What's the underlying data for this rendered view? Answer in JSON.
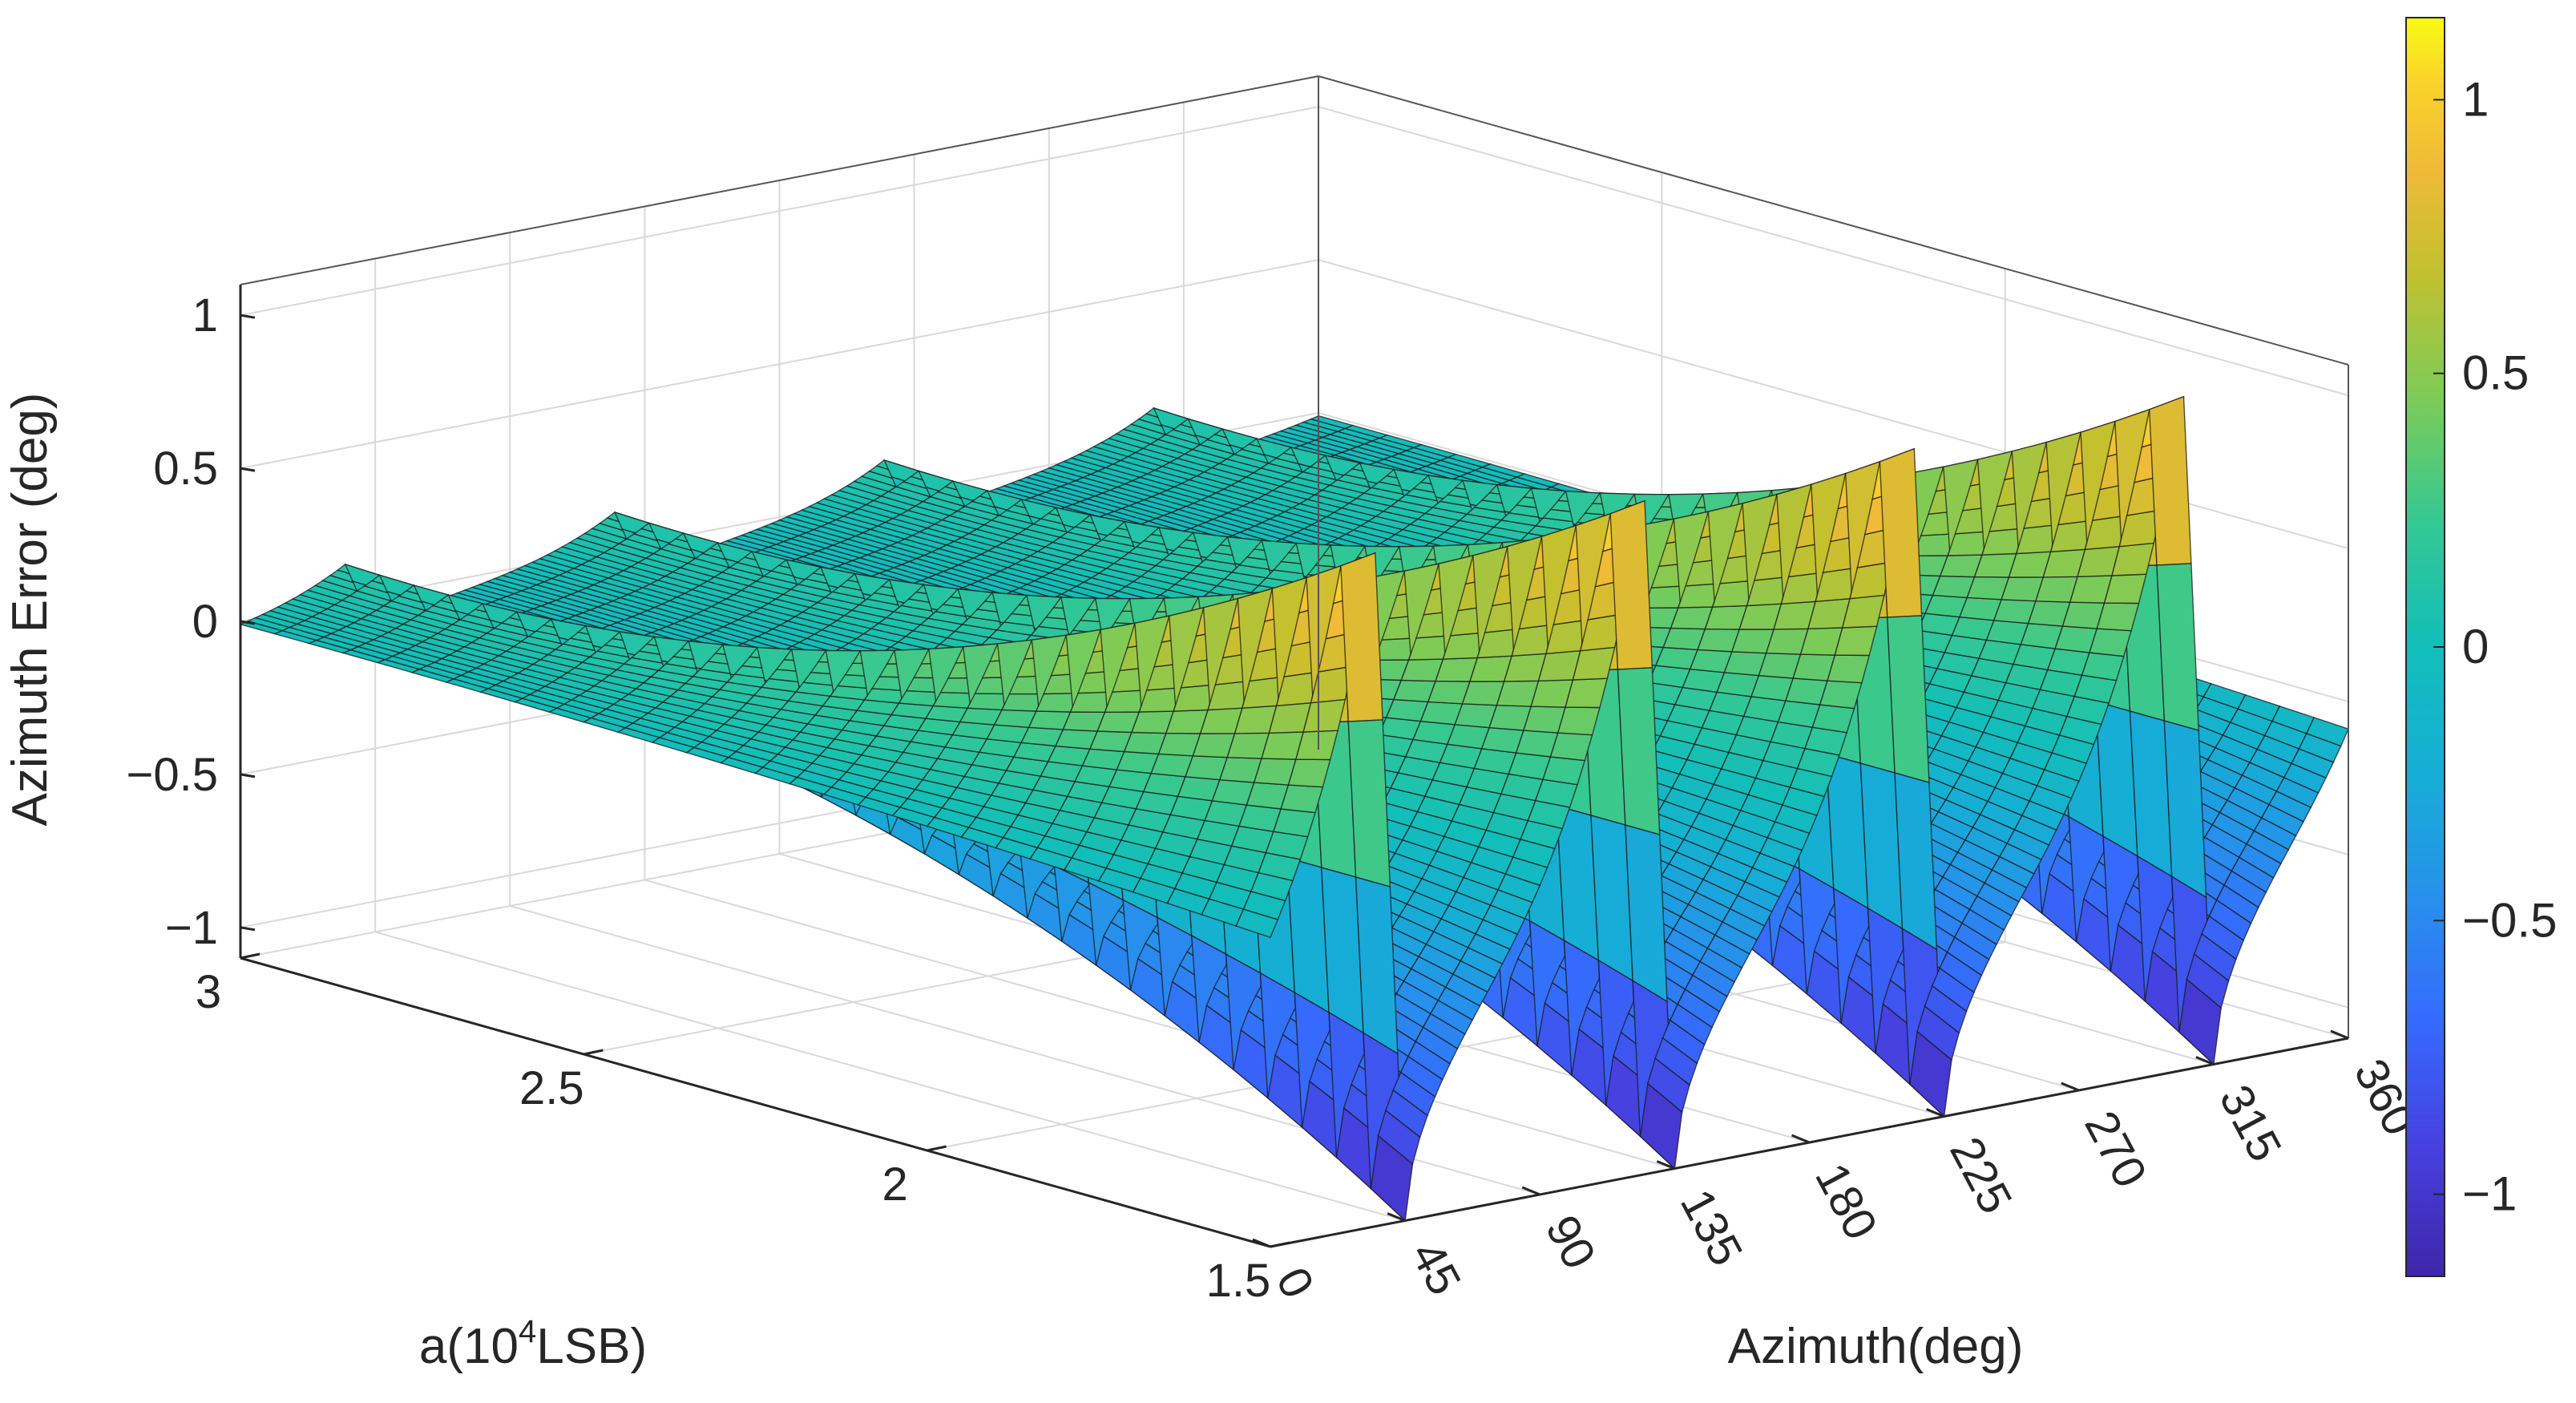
{
  "chart_data": {
    "type": "surface",
    "title": "",
    "xlabel": "Azimuth(deg)",
    "ylabel_html": {
      "base": "a(10",
      "sup": "4",
      "rest": "LSB)"
    },
    "zlabel": "Azimuth Error (deg)",
    "x": {
      "min": 0,
      "max": 360,
      "ticks": [
        0,
        45,
        90,
        135,
        180,
        225,
        270,
        315,
        360
      ],
      "tick_labels": [
        "0",
        "45",
        "90",
        "135",
        "180",
        "225",
        "270",
        "315",
        "360"
      ]
    },
    "y": {
      "min": 1.5,
      "max": 3,
      "ticks": [
        1.5,
        2,
        2.5,
        3
      ],
      "tick_labels": [
        "1.5",
        "2",
        "2.5",
        "3"
      ]
    },
    "z": {
      "min": -1.1,
      "max": 1.1,
      "ticks": [
        -1,
        -0.5,
        0,
        0.5,
        1
      ],
      "tick_labels": [
        "−1",
        "−0.5",
        "0",
        "0.5",
        "1"
      ]
    },
    "surface": {
      "period_deg": 90,
      "trough_azimuths": [
        45,
        135,
        225,
        315
      ],
      "peak_azimuths_before_trough": [
        35,
        125,
        215,
        305
      ],
      "min_value_at_a_1_5": -1.1,
      "max_value_at_a_1_5": 1.1,
      "ridge_value_at_a_3": 0.12,
      "trough_value_at_a_3": -0.12,
      "edge_value_at_azimuth_360": 0.4
    },
    "colorbar": {
      "colormap": "parula",
      "range": [
        -1.15,
        1.15
      ],
      "ticks": [
        -1,
        -0.5,
        0,
        0.5,
        1
      ],
      "tick_labels": [
        "−1",
        "−0.5",
        "0",
        "0.5",
        "1"
      ]
    },
    "grid": true,
    "colors": {
      "grid": "#d9d9d9",
      "axis": "#262626",
      "mesh": "#1a1a1a"
    }
  }
}
